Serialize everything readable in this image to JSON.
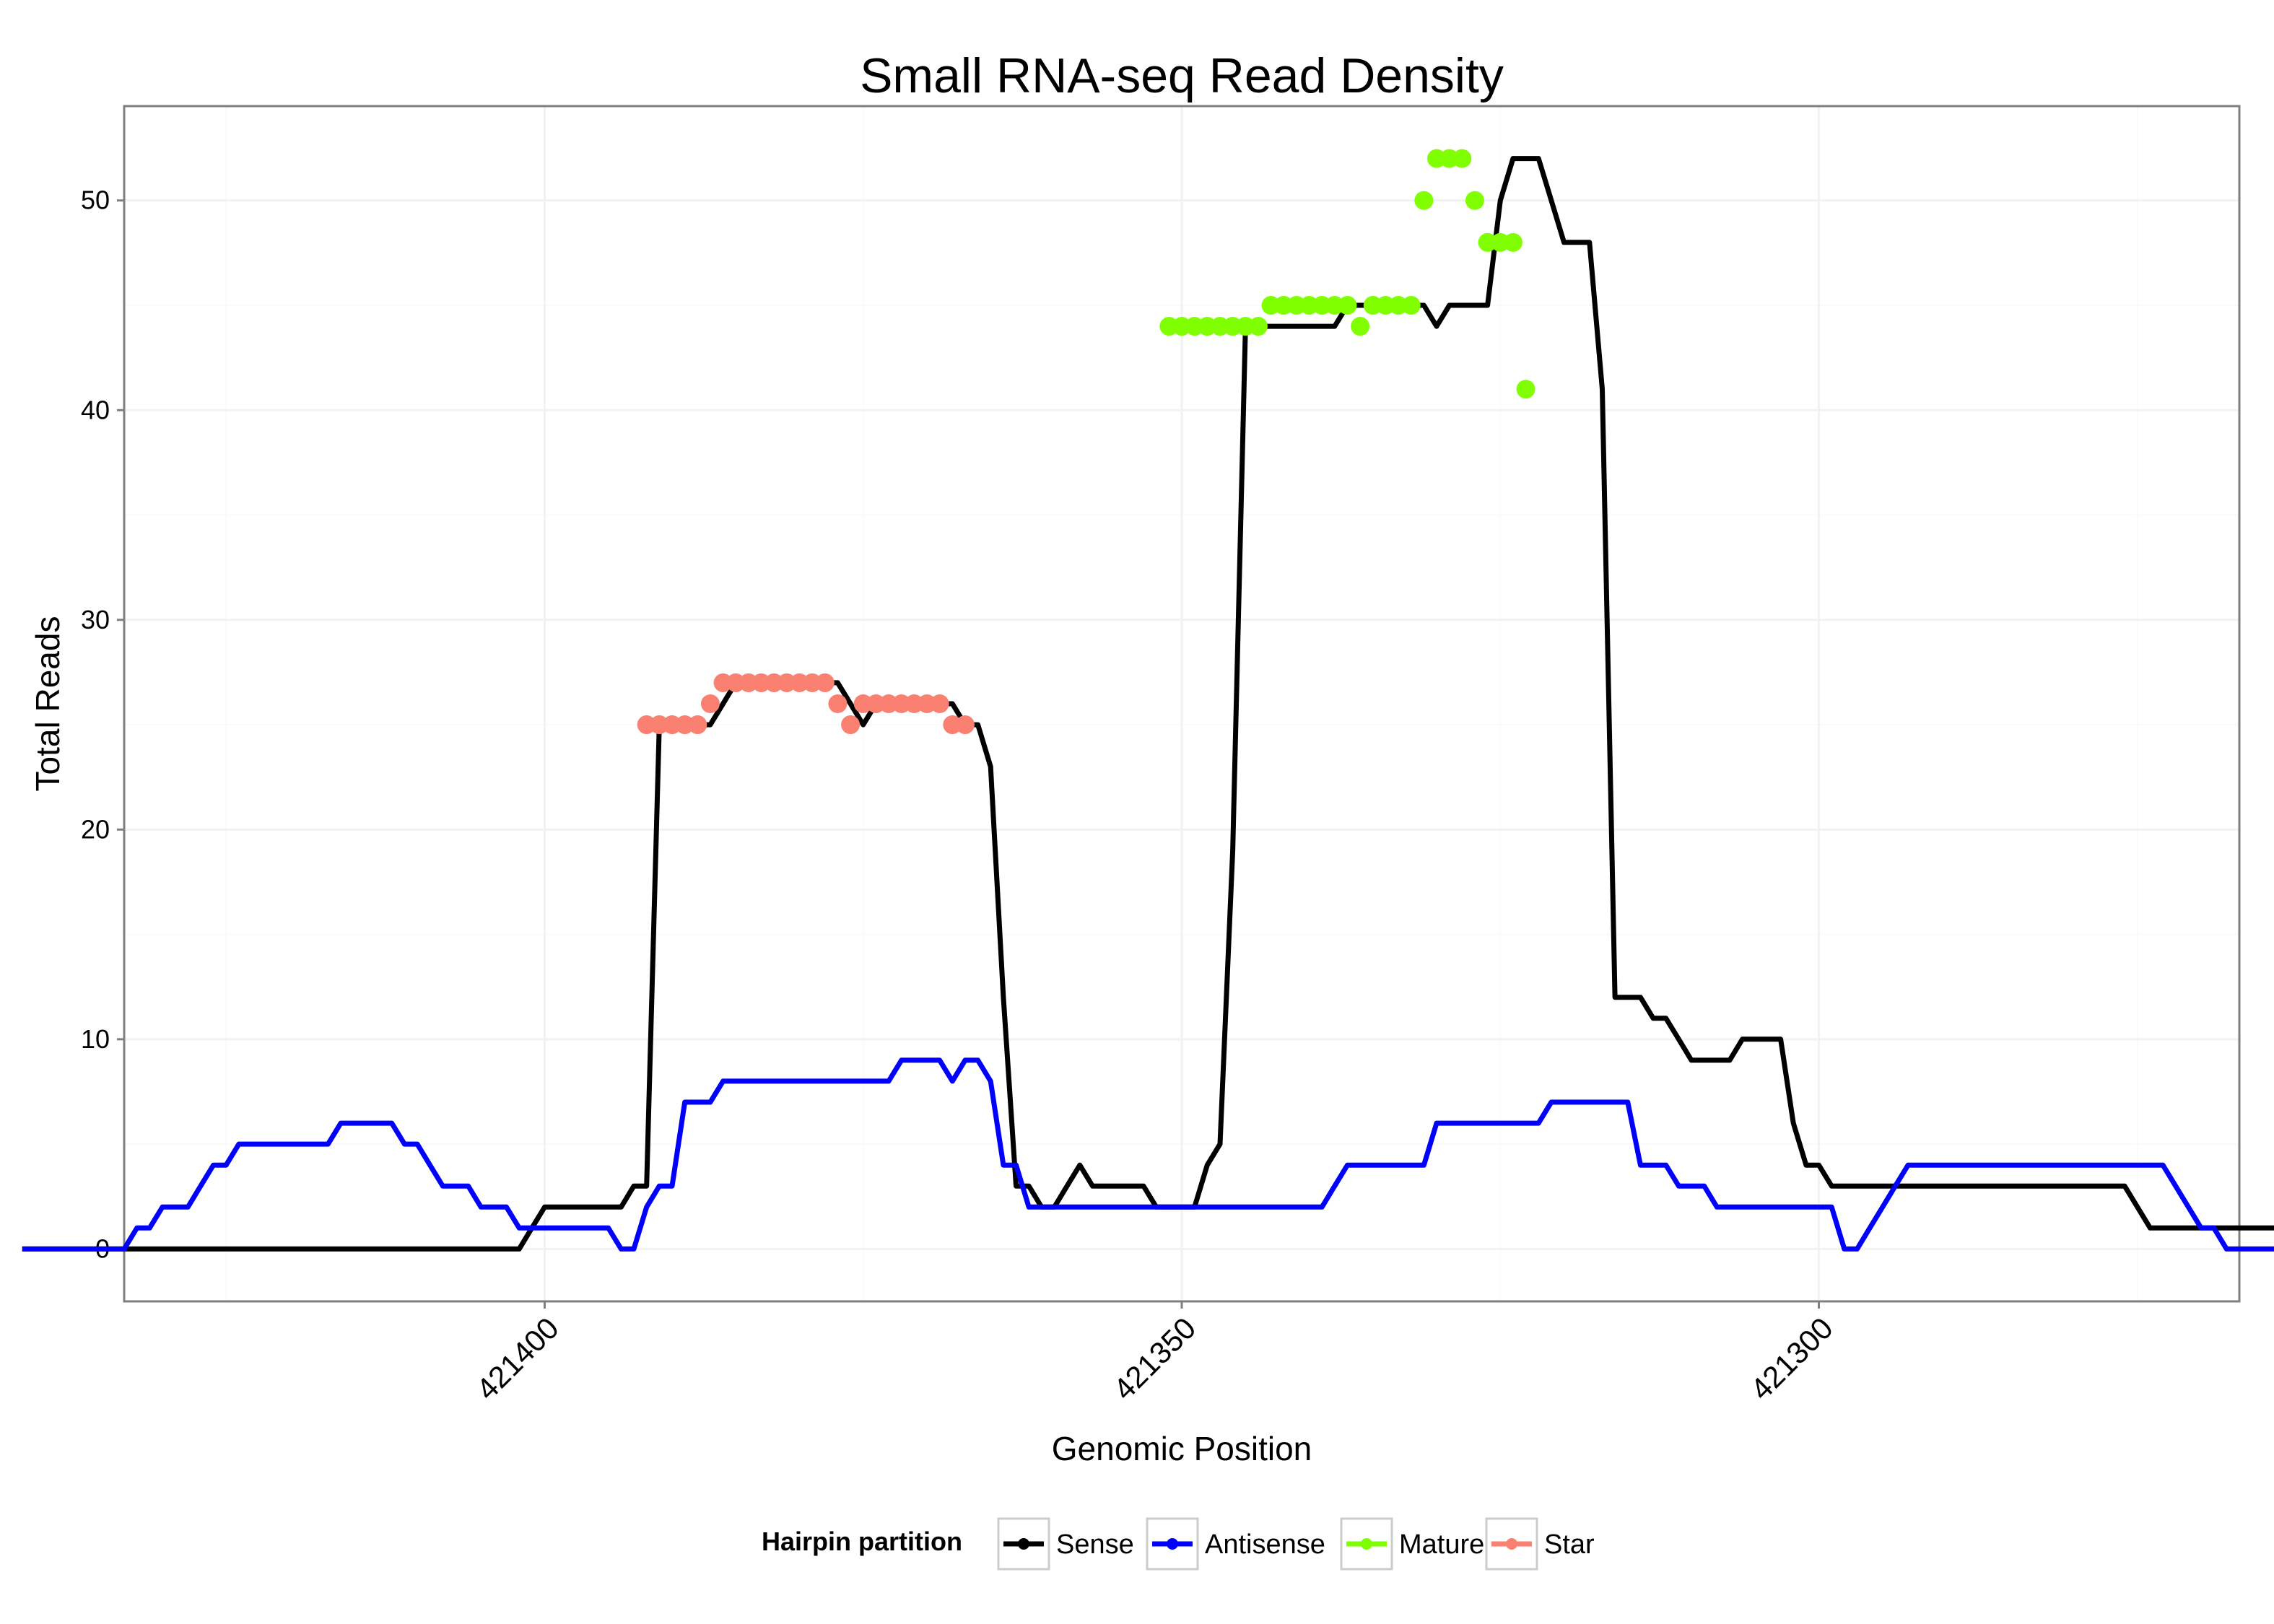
{
  "chart_data": {
    "type": "line",
    "title": "Small RNA-seq Read Density",
    "xlabel": "Genomic Position",
    "ylabel": "Total Reads",
    "x_reversed": true,
    "xlim": [
      421433,
      421267
    ],
    "ylim": [
      -2.5,
      54.5
    ],
    "x_ticks": [
      421400,
      421350,
      421300
    ],
    "x_tick_labels": [
      "421400",
      "421350",
      "421300"
    ],
    "y_ticks": [
      0,
      10,
      20,
      30,
      40,
      50
    ],
    "y_tick_labels": [
      "0",
      "10",
      "20",
      "30",
      "40",
      "50"
    ],
    "grid": true,
    "legend": {
      "title": "Hairpin partition",
      "position": "bottom",
      "entries": [
        {
          "label": "Sense",
          "color": "#000000"
        },
        {
          "label": "Antisense",
          "color": "#0000FF"
        },
        {
          "label": "Mature",
          "color": "#7FFF00"
        },
        {
          "label": "Star",
          "color": "#FA8072"
        }
      ]
    },
    "series": [
      {
        "name": "Sense",
        "color": "#000000",
        "x_start": 421441,
        "values": [
          0,
          0,
          0,
          0,
          0,
          0,
          0,
          0,
          0,
          0,
          0,
          0,
          0,
          0,
          0,
          0,
          0,
          0,
          0,
          0,
          0,
          0,
          0,
          0,
          0,
          0,
          0,
          0,
          0,
          0,
          0,
          0,
          0,
          0,
          0,
          0,
          0,
          0,
          0,
          0,
          1,
          2,
          2,
          2,
          2,
          2,
          2,
          2,
          3,
          3,
          25,
          25,
          25,
          25,
          25,
          26,
          27,
          27,
          27,
          27,
          27,
          27,
          27,
          27,
          27,
          26,
          25,
          26,
          26,
          26,
          26,
          26,
          26,
          26,
          25,
          25,
          23,
          12,
          3,
          3,
          2,
          2,
          3,
          4,
          3,
          3,
          3,
          3,
          3,
          2,
          2,
          2,
          2,
          4,
          5,
          19,
          44,
          44,
          44,
          44,
          44,
          44,
          44,
          44,
          45,
          45,
          45,
          45,
          45,
          45,
          45,
          44,
          45,
          45,
          45,
          45,
          50,
          52,
          52,
          52,
          50,
          48,
          48,
          48,
          41,
          12,
          12,
          12,
          11,
          11,
          10,
          9,
          9,
          9,
          9,
          10,
          10,
          10,
          10,
          6,
          4,
          4,
          3,
          3,
          3,
          3,
          3,
          3,
          3,
          3,
          3,
          3,
          3,
          3,
          3,
          3,
          3,
          3,
          3,
          3,
          3,
          3,
          3,
          3,
          3,
          3,
          2,
          1,
          1,
          1,
          1,
          1,
          1,
          1,
          1,
          1,
          1,
          1,
          1,
          1
        ]
      },
      {
        "name": "Antisense",
        "color": "#0000FF",
        "x_start": 421441,
        "values": [
          0,
          0,
          0,
          0,
          0,
          0,
          0,
          0,
          0,
          1,
          1,
          2,
          2,
          2,
          3,
          4,
          4,
          5,
          5,
          5,
          5,
          5,
          5,
          5,
          5,
          6,
          6,
          6,
          6,
          6,
          5,
          5,
          4,
          3,
          3,
          3,
          2,
          2,
          2,
          1,
          1,
          1,
          1,
          1,
          1,
          1,
          1,
          0,
          0,
          2,
          3,
          3,
          7,
          7,
          7,
          8,
          8,
          8,
          8,
          8,
          8,
          8,
          8,
          8,
          8,
          8,
          8,
          8,
          8,
          9,
          9,
          9,
          9,
          8,
          9,
          9,
          8,
          4,
          4,
          2,
          2,
          2,
          2,
          2,
          2,
          2,
          2,
          2,
          2,
          2,
          2,
          2,
          2,
          2,
          2,
          2,
          2,
          2,
          2,
          2,
          2,
          2,
          2,
          3,
          4,
          4,
          4,
          4,
          4,
          4,
          4,
          6,
          6,
          6,
          6,
          6,
          6,
          6,
          6,
          6,
          7,
          7,
          7,
          7,
          7,
          7,
          7,
          4,
          4,
          4,
          3,
          3,
          3,
          2,
          2,
          2,
          2,
          2,
          2,
          2,
          2,
          2,
          2,
          0,
          0,
          1,
          2,
          3,
          4,
          4,
          4,
          4,
          4,
          4,
          4,
          4,
          4,
          4,
          4,
          4,
          4,
          4,
          4,
          4,
          4,
          4,
          4,
          4,
          4,
          3,
          2,
          1,
          1,
          0,
          0,
          0,
          0,
          0
        ]
      },
      {
        "name": "Star",
        "color": "#FA8072",
        "x": [
          421392,
          421391,
          421390,
          421389,
          421388,
          421387,
          421386,
          421385,
          421384,
          421383,
          421382,
          421381,
          421380,
          421379,
          421378,
          421377,
          421376,
          421375,
          421374,
          421373,
          421372,
          421371,
          421370,
          421369,
          421368,
          421367
        ],
        "values": [
          25,
          25,
          25,
          25,
          25,
          26,
          27,
          27,
          27,
          27,
          27,
          27,
          27,
          27,
          27,
          26,
          25,
          26,
          26,
          26,
          26,
          26,
          26,
          26,
          25,
          25
        ]
      },
      {
        "name": "Mature",
        "color": "#7FFF00",
        "x": [
          421351,
          421350,
          421349,
          421348,
          421347,
          421346,
          421345,
          421344,
          421343,
          421342,
          421341,
          421340,
          421339,
          421338,
          421337,
          421336,
          421335,
          421334,
          421333,
          421332,
          421331,
          421330,
          421329,
          421328,
          421327,
          421326,
          421325,
          421324,
          421323
        ],
        "values": [
          44,
          44,
          44,
          44,
          44,
          44,
          44,
          44,
          45,
          45,
          45,
          45,
          45,
          45,
          45,
          44,
          45,
          45,
          45,
          45,
          50,
          52,
          52,
          52,
          50,
          48,
          48,
          48,
          41
        ]
      }
    ]
  }
}
